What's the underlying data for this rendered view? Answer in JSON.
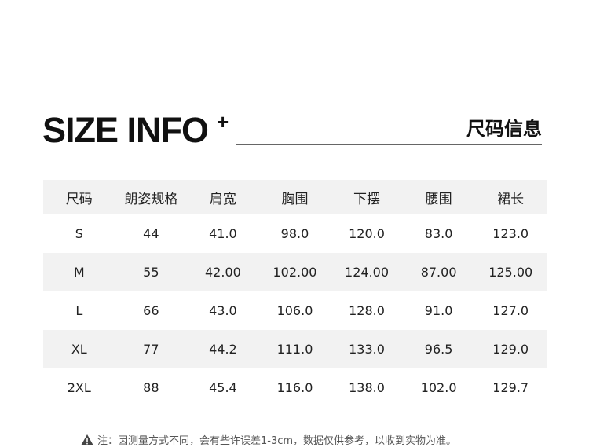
{
  "title": "SIZE INFO",
  "title_plus": "+",
  "title_cn": "尺码信息",
  "table": {
    "headers": [
      "尺码",
      "朗姿规格",
      "肩宽",
      "胸围",
      "下摆",
      "腰围",
      "裙长"
    ],
    "rows": [
      [
        "S",
        "44",
        "41.0",
        "98.0",
        "120.0",
        "83.0",
        "123.0"
      ],
      [
        "M",
        "55",
        "42.00",
        "102.00",
        "124.00",
        "87.00",
        "125.00"
      ],
      [
        "L",
        "66",
        "43.0",
        "106.0",
        "128.0",
        "91.0",
        "127.0"
      ],
      [
        "XL",
        "77",
        "44.2",
        "111.0",
        "133.0",
        "96.5",
        "129.0"
      ],
      [
        "2XL",
        "88",
        "45.4",
        "116.0",
        "138.0",
        "102.0",
        "129.7"
      ]
    ]
  },
  "note": "注：因测量方式不同，会有些许误差1-3cm，数据仅供参考，以收到实物为准。",
  "colors": {
    "stripe": "#f2f2f2"
  }
}
